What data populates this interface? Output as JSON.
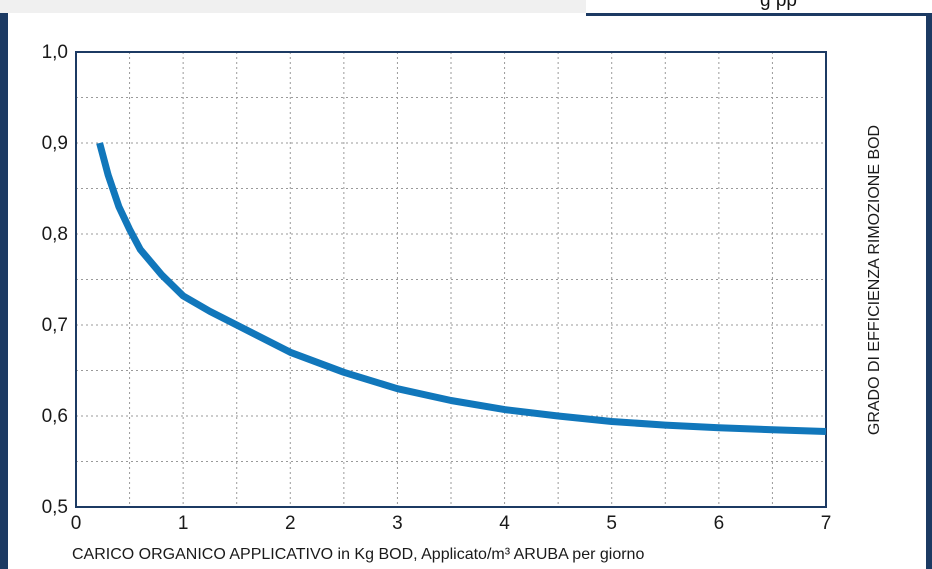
{
  "banner": {
    "partial_title": "g     pp"
  },
  "chart_data": {
    "type": "line",
    "title": "",
    "xlabel": "CARICO ORGANICO APPLICATIVO in Kg BOD, Applicato/m³ ARUBA per giorno",
    "ylabel": "GRADO DI EFFICIENZA RIMOZIONE BOD",
    "xlim": [
      0,
      7
    ],
    "ylim": [
      0.5,
      1.0
    ],
    "x_ticks": [
      "0",
      "1",
      "2",
      "3",
      "4",
      "5",
      "6",
      "7"
    ],
    "y_ticks": [
      "0,5",
      "0,6",
      "0,7",
      "0,8",
      "0,9",
      "1,0"
    ],
    "grid": true,
    "line_color": "#1177bb",
    "series": [
      {
        "x": [
          0.22,
          0.3,
          0.4,
          0.5,
          0.6,
          0.8,
          1.0,
          1.25,
          1.5,
          2.0,
          2.5,
          3.0,
          3.5,
          4.0,
          4.5,
          5.0,
          5.5,
          6.0,
          6.5,
          7.0
        ],
        "values": [
          0.9,
          0.865,
          0.83,
          0.805,
          0.783,
          0.755,
          0.732,
          0.715,
          0.7,
          0.67,
          0.648,
          0.63,
          0.617,
          0.607,
          0.6,
          0.594,
          0.59,
          0.587,
          0.585,
          0.583
        ]
      }
    ]
  }
}
